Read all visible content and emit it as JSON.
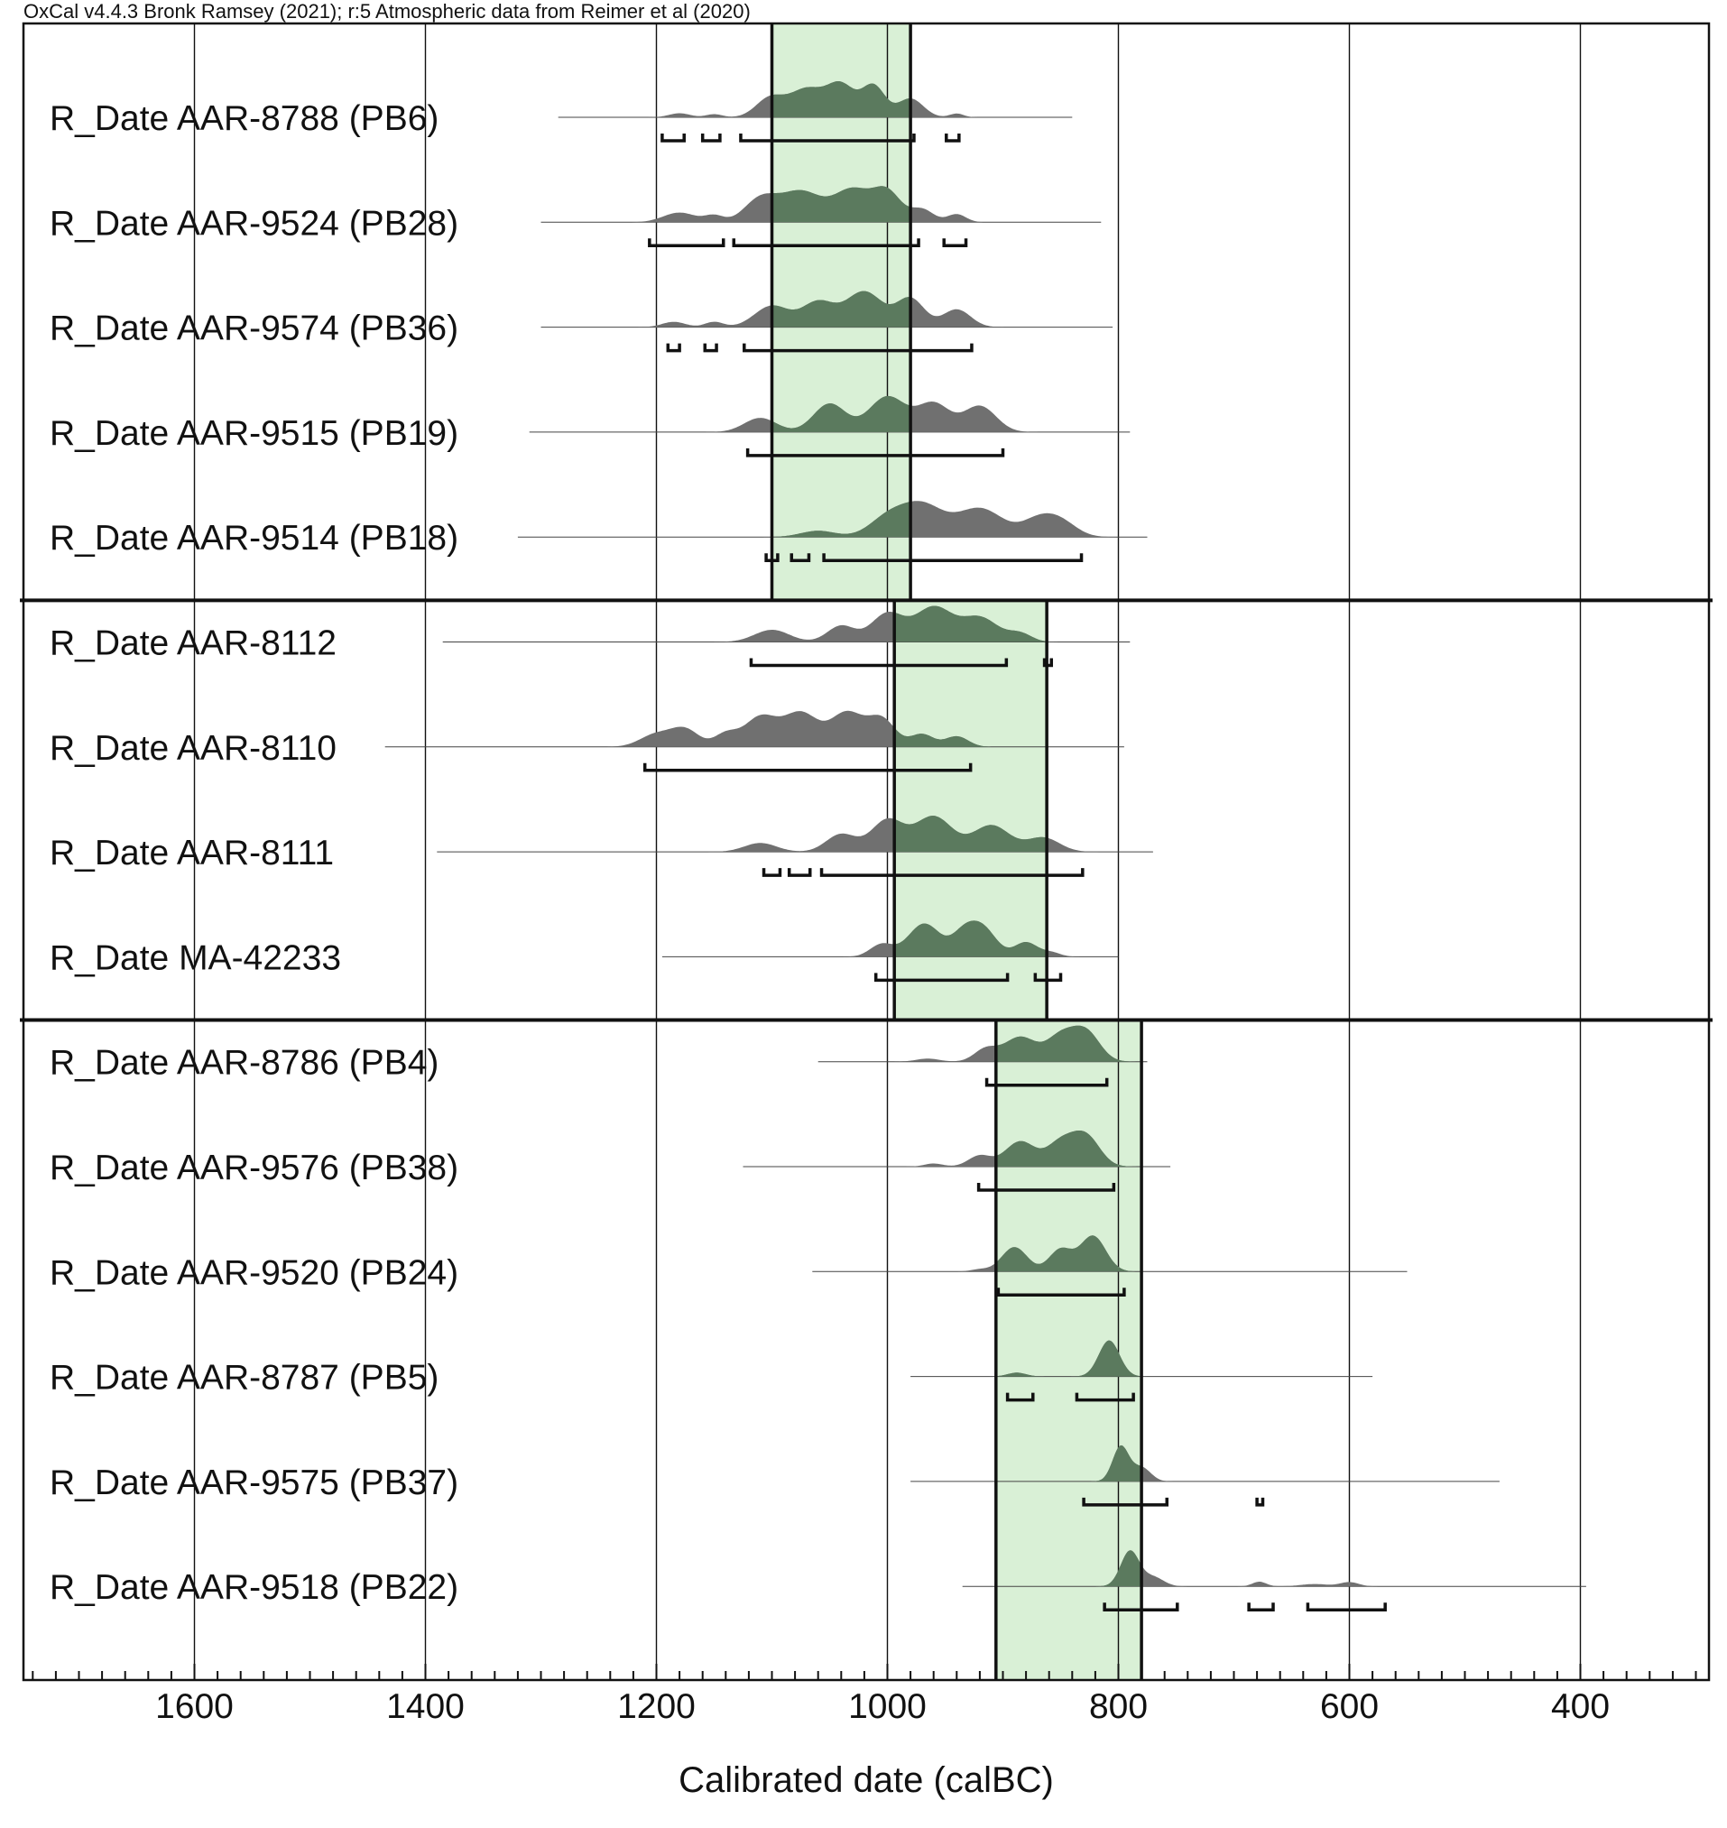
{
  "header": {
    "text": "OxCal v4.4.3 Bronk Ramsey (2021); r:5 Atmospheric data from Reimer et al (2020)"
  },
  "chart_data": {
    "type": "multiple plot (calibrated radiocarbon probability distributions)",
    "xlabel": "Calibrated date (calBC)",
    "x_direction": "reversed (older dates to the left)",
    "xlim": [
      1760,
      290
    ],
    "x_ticks": [
      1600,
      1400,
      1200,
      1000,
      800,
      600,
      400
    ],
    "minor_tick_interval": 20,
    "grid": "vertical lines at major ticks",
    "colors": {
      "distribution": "#707070",
      "overlap_shading": "#d9f0d6",
      "overlap_distribution": "#5b7a5e",
      "lines": "#111111"
    },
    "groups": [
      {
        "rows": [
          0,
          4
        ],
        "shaded_interval": [
          1100,
          980
        ]
      },
      {
        "rows": [
          5,
          8
        ],
        "shaded_interval": [
          994,
          862
        ]
      },
      {
        "rows": [
          9,
          14
        ],
        "shaded_interval": [
          906,
          780
        ]
      }
    ],
    "samples": [
      {
        "label": "R_Date AAR-8788 (PB6)",
        "range": [
          1285,
          840
        ],
        "peaks": [
          [
            1180,
            9,
            0.13
          ],
          [
            1150,
            7,
            0.1
          ],
          [
            1102,
            12,
            0.6
          ],
          [
            1070,
            15,
            0.9
          ],
          [
            1040,
            12,
            1.0
          ],
          [
            1012,
            10,
            1.0
          ],
          [
            980,
            11,
            0.6
          ],
          [
            940,
            6,
            0.12
          ]
        ],
        "hpd95": [
          [
            1195,
            1176
          ],
          [
            1160,
            1145
          ],
          [
            1127,
            977
          ],
          [
            949,
            938
          ]
        ]
      },
      {
        "label": "R_Date AAR-9524 (PB28)",
        "range": [
          1300,
          815
        ],
        "peaks": [
          [
            1180,
            14,
            0.3
          ],
          [
            1150,
            8,
            0.2
          ],
          [
            1110,
            14,
            0.7
          ],
          [
            1075,
            18,
            0.95
          ],
          [
            1030,
            16,
            1.0
          ],
          [
            1000,
            12,
            0.9
          ],
          [
            970,
            10,
            0.4
          ],
          [
            940,
            8,
            0.25
          ]
        ],
        "hpd95": [
          [
            1206,
            1142
          ],
          [
            1133,
            973
          ],
          [
            951,
            932
          ]
        ]
      },
      {
        "label": "R_Date AAR-9574 (PB36)",
        "range": [
          1300,
          805
        ],
        "peaks": [
          [
            1185,
            10,
            0.15
          ],
          [
            1150,
            8,
            0.15
          ],
          [
            1100,
            15,
            0.6
          ],
          [
            1060,
            14,
            0.7
          ],
          [
            1020,
            16,
            1.0
          ],
          [
            980,
            12,
            0.8
          ],
          [
            940,
            12,
            0.5
          ]
        ],
        "hpd95": [
          [
            1190,
            1180
          ],
          [
            1158,
            1148
          ],
          [
            1124,
            927
          ]
        ]
      },
      {
        "label": "R_Date AAR-9515 (PB19)",
        "range": [
          1310,
          790
        ],
        "peaks": [
          [
            1110,
            14,
            0.3
          ],
          [
            1050,
            14,
            0.6
          ],
          [
            1000,
            16,
            0.75
          ],
          [
            960,
            14,
            0.6
          ],
          [
            920,
            14,
            0.55
          ]
        ],
        "hpd95": [
          [
            1121,
            900
          ]
        ]
      },
      {
        "label": "R_Date AAR-9514 (PB18)",
        "range": [
          1320,
          775
        ],
        "peaks": [
          [
            1060,
            15,
            0.12
          ],
          [
            1000,
            16,
            0.35
          ],
          [
            970,
            18,
            0.6
          ],
          [
            920,
            20,
            0.55
          ],
          [
            870,
            14,
            0.3
          ],
          [
            850,
            14,
            0.28
          ]
        ],
        "hpd95": [
          [
            1105,
            1095
          ],
          [
            1083,
            1068
          ],
          [
            1055,
            832
          ]
        ]
      },
      {
        "label": "R_Date AAR-8112",
        "range": [
          1385,
          790
        ],
        "peaks": [
          [
            1100,
            15,
            0.3
          ],
          [
            1040,
            12,
            0.4
          ],
          [
            1000,
            14,
            0.7
          ],
          [
            960,
            16,
            0.85
          ],
          [
            920,
            16,
            0.6
          ],
          [
            885,
            10,
            0.2
          ]
        ],
        "hpd95": [
          [
            1118,
            897
          ],
          [
            864,
            858
          ]
        ]
      },
      {
        "label": "R_Date AAR-8110",
        "range": [
          1435,
          795
        ],
        "peaks": [
          [
            1200,
            14,
            0.3
          ],
          [
            1175,
            12,
            0.4
          ],
          [
            1140,
            10,
            0.3
          ],
          [
            1110,
            14,
            0.7
          ],
          [
            1075,
            15,
            0.8
          ],
          [
            1035,
            14,
            0.8
          ],
          [
            1005,
            12,
            0.65
          ],
          [
            970,
            10,
            0.3
          ],
          [
            940,
            10,
            0.25
          ]
        ],
        "hpd95": [
          [
            1210,
            928
          ]
        ]
      },
      {
        "label": "R_Date AAR-8111",
        "range": [
          1390,
          770
        ],
        "peaks": [
          [
            1110,
            14,
            0.25
          ],
          [
            1040,
            13,
            0.5
          ],
          [
            1000,
            14,
            0.9
          ],
          [
            960,
            16,
            1.0
          ],
          [
            910,
            16,
            0.75
          ],
          [
            865,
            14,
            0.4
          ]
        ],
        "hpd95": [
          [
            1107,
            1093
          ],
          [
            1085,
            1067
          ],
          [
            1057,
            831
          ]
        ]
      },
      {
        "label": "R_Date MA-42233",
        "range": [
          1195,
          800
        ],
        "peaks": [
          [
            1005,
            10,
            0.3
          ],
          [
            968,
            14,
            0.8
          ],
          [
            935,
            10,
            0.45
          ],
          [
            918,
            12,
            0.7
          ],
          [
            880,
            10,
            0.35
          ],
          [
            858,
            8,
            0.1
          ]
        ],
        "hpd95": [
          [
            1010,
            896
          ],
          [
            872,
            850
          ]
        ]
      },
      {
        "label": "R_Date AAR-8786 (PB4)",
        "range": [
          1060,
          775
        ],
        "peaks": [
          [
            965,
            10,
            0.1
          ],
          [
            915,
            10,
            0.4
          ],
          [
            885,
            14,
            0.8
          ],
          [
            850,
            12,
            0.8
          ],
          [
            828,
            12,
            0.95
          ]
        ],
        "hpd95": [
          [
            914,
            810
          ]
        ]
      },
      {
        "label": "R_Date AAR-9576 (PB38)",
        "range": [
          1125,
          755
        ],
        "peaks": [
          [
            960,
            8,
            0.1
          ],
          [
            920,
            10,
            0.35
          ],
          [
            885,
            13,
            0.8
          ],
          [
            850,
            12,
            0.75
          ],
          [
            828,
            12,
            0.95
          ]
        ],
        "hpd95": [
          [
            921,
            804
          ]
        ]
      },
      {
        "label": "R_Date AAR-9520 (PB24)",
        "range": [
          1065,
          550
        ],
        "peaks": [
          [
            920,
            8,
            0.05
          ],
          [
            890,
            11,
            0.55
          ],
          [
            850,
            10,
            0.5
          ],
          [
            822,
            11,
            0.8
          ]
        ],
        "hpd95": [
          [
            904,
            795
          ]
        ]
      },
      {
        "label": "R_Date AAR-8787 (PB5)",
        "range": [
          980,
          580
        ],
        "peaks": [
          [
            888,
            8,
            0.08
          ],
          [
            808,
            9,
            0.75
          ]
        ],
        "hpd95": [
          [
            896,
            874
          ],
          [
            836,
            787
          ]
        ]
      },
      {
        "label": "R_Date AAR-9575 (PB37)",
        "range": [
          980,
          470
        ],
        "peaks": [
          [
            798,
            7,
            0.75
          ],
          [
            780,
            8,
            0.3
          ]
        ],
        "hpd95": [
          [
            830,
            758
          ],
          [
            680,
            675
          ]
        ]
      },
      {
        "label": "R_Date AAR-9518 (PB22)",
        "range": [
          935,
          395
        ],
        "peaks": [
          [
            790,
            8,
            0.75
          ],
          [
            770,
            9,
            0.2
          ],
          [
            678,
            6,
            0.1
          ],
          [
            630,
            12,
            0.05
          ],
          [
            600,
            8,
            0.09
          ]
        ],
        "hpd95": [
          [
            812,
            749
          ],
          [
            687,
            666
          ],
          [
            636,
            569
          ]
        ]
      }
    ]
  }
}
